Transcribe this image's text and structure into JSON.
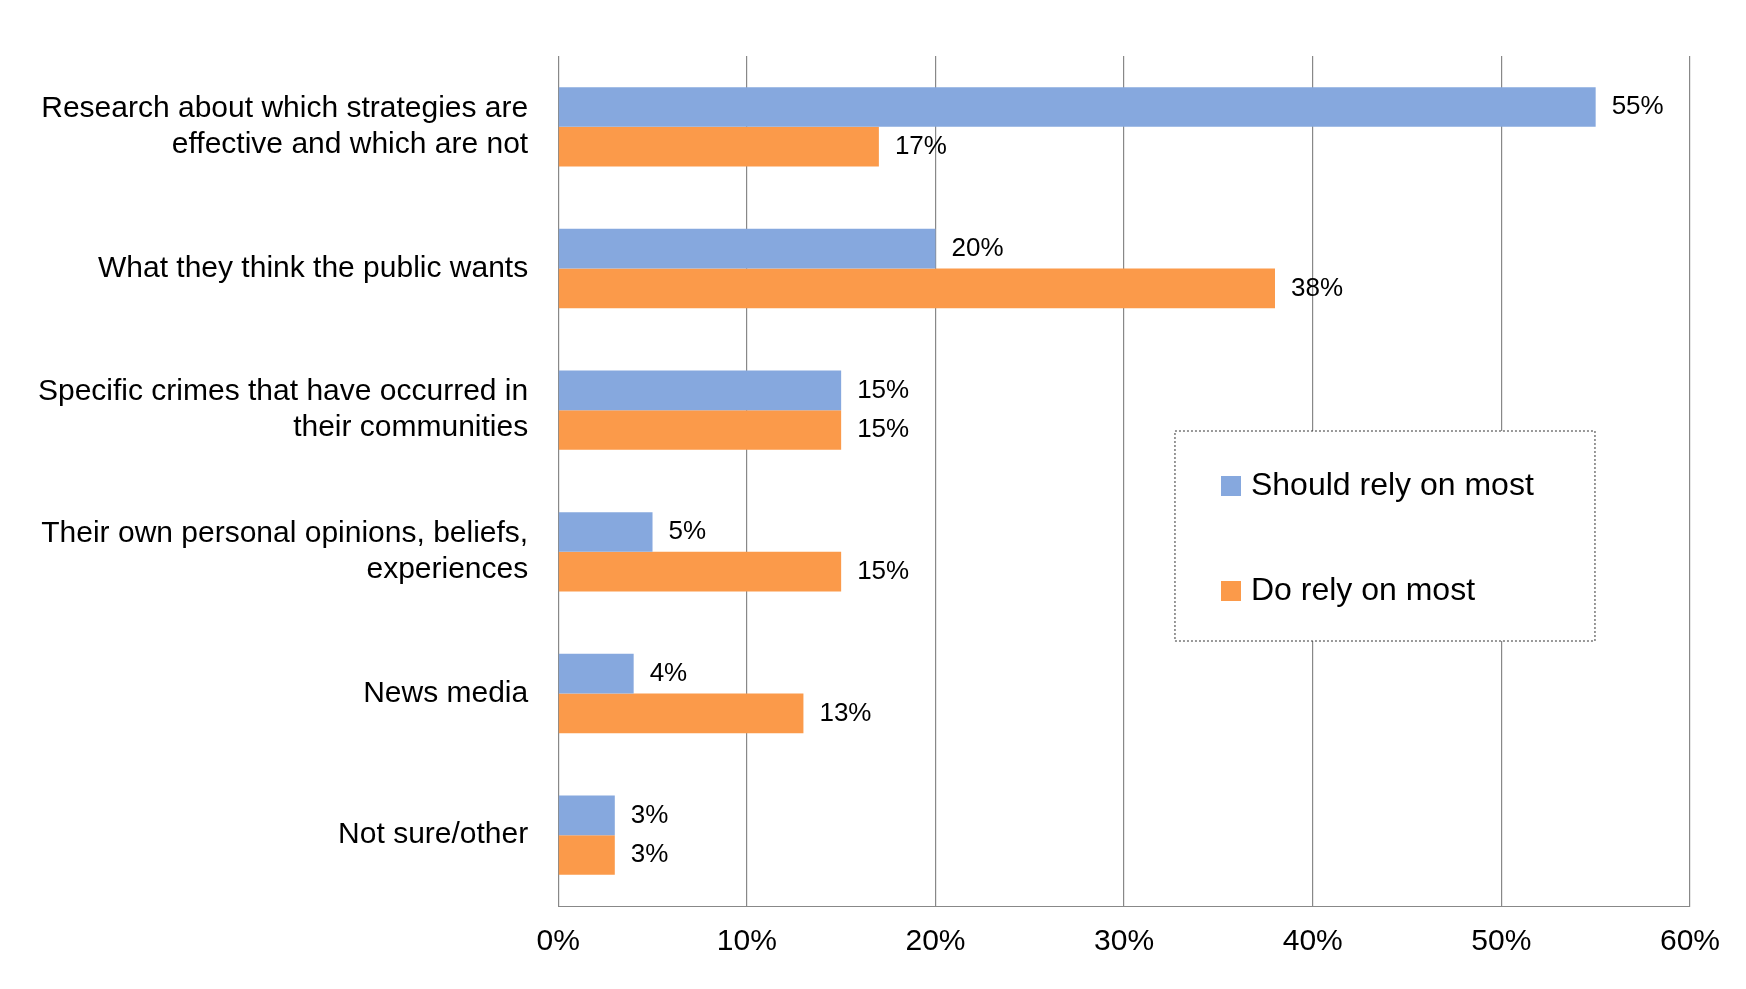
{
  "chart_data": {
    "type": "bar",
    "orientation": "horizontal",
    "categories": [
      "Research about which strategies are effective and which are not",
      "What they think the public wants",
      "Specific crimes that have occurred in their communities",
      "Their own personal opinions, beliefs, experiences",
      "News media",
      "Not sure/other"
    ],
    "series": [
      {
        "name": "Should rely on most",
        "color": "#86a8de",
        "values": [
          55,
          20,
          15,
          5,
          4,
          3
        ],
        "value_labels": [
          "55%",
          "20%",
          "15%",
          "5%",
          "4%",
          "3%"
        ]
      },
      {
        "name": "Do rely on most",
        "color": "#fb9a4a",
        "values": [
          17,
          38,
          15,
          15,
          13,
          3
        ],
        "value_labels": [
          "17%",
          "38%",
          "15%",
          "15%",
          "13%",
          "3%"
        ]
      }
    ],
    "xlim": [
      0,
      60
    ],
    "xticks": [
      {
        "value": 0,
        "label": "0%"
      },
      {
        "value": 10,
        "label": "10%"
      },
      {
        "value": 20,
        "label": "20%"
      },
      {
        "value": 30,
        "label": "30%"
      },
      {
        "value": 40,
        "label": "40%"
      },
      {
        "value": 50,
        "label": "50%"
      },
      {
        "value": 60,
        "label": "60%"
      }
    ],
    "grid": "x",
    "legend": "right"
  }
}
